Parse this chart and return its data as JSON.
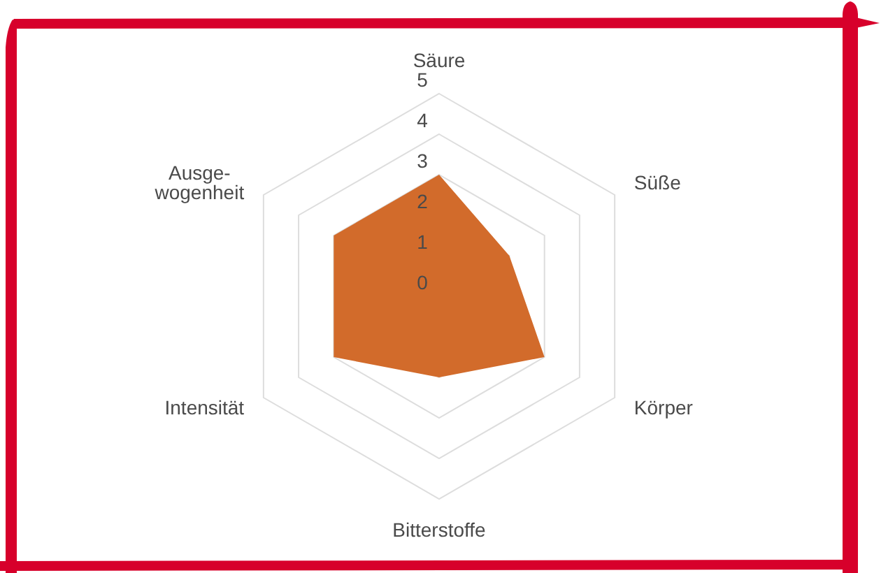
{
  "chart_data": {
    "type": "radar",
    "categories": [
      "Säure",
      "Süße",
      "Körper",
      "Bitterstoffe",
      "Intensität",
      "Ausge-\nwogenheit"
    ],
    "series": [
      {
        "color": "#d26b2b",
        "values": [
          3,
          2,
          3,
          2,
          3,
          3
        ]
      }
    ],
    "ylim": [
      0,
      5
    ],
    "yticks": [
      0,
      1,
      2,
      3,
      4,
      5
    ],
    "grid": true,
    "legend": false,
    "marker": "none"
  }
}
